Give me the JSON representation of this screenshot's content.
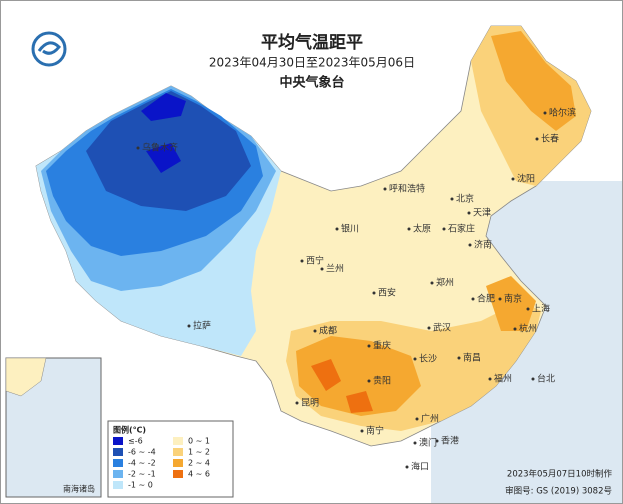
{
  "header": {
    "title": "平均气温距平",
    "subtitle": "2023年04月30日至2023年05月06日",
    "org": "中央气象台"
  },
  "legend": {
    "title": "图例(℃)",
    "items": [
      {
        "label": "≤-6",
        "color": "#0a14c8"
      },
      {
        "label": "-6 ~ -4",
        "color": "#1e50b4"
      },
      {
        "label": "-4 ~ -2",
        "color": "#2a80e0"
      },
      {
        "label": "-2 ~ -1",
        "color": "#6cb4f0"
      },
      {
        "label": "-1 ~ 0",
        "color": "#bfe6fa"
      },
      {
        "label": "0 ~ 1",
        "color": "#fdf0c0"
      },
      {
        "label": "1 ~ 2",
        "color": "#fad27a"
      },
      {
        "label": "2 ~ 4",
        "color": "#f5a830"
      },
      {
        "label": "4 ~ 6",
        "color": "#ee7010"
      }
    ]
  },
  "cities": [
    "乌鲁木齐",
    "哈尔滨",
    "长春",
    "沈阳",
    "呼和浩特",
    "北京",
    "天津",
    "银川",
    "太原",
    "石家庄",
    "济南",
    "西宁",
    "兰州",
    "郑州",
    "西安",
    "合肥",
    "南京",
    "上海",
    "拉萨",
    "成都",
    "武汉",
    "杭州",
    "重庆",
    "长沙",
    "南昌",
    "贵阳",
    "福州",
    "台北",
    "昆明",
    "南宁",
    "广州",
    "香港",
    "澳门",
    "海口"
  ],
  "inset": {
    "label": "南海诸岛"
  },
  "footer": {
    "made": "2023年05月07日10时制作",
    "approval": "审图号: GS (2019) 3082号"
  }
}
